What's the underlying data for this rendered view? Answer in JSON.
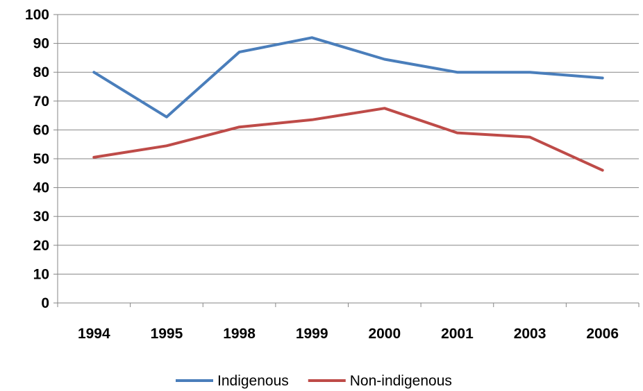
{
  "chart_data": {
    "type": "line",
    "title": "",
    "xlabel": "",
    "ylabel": "",
    "categories": [
      "1994",
      "1995",
      "1998",
      "1999",
      "2000",
      "2001",
      "2003",
      "2006"
    ],
    "ylim": [
      0,
      100
    ],
    "yticks": [
      "0",
      "10",
      "20",
      "30",
      "40",
      "50",
      "60",
      "70",
      "80",
      "90",
      "100"
    ],
    "grid": true,
    "legend_position": "bottom",
    "series": [
      {
        "name": "Indigenous",
        "color": "#4a7ebb",
        "values": [
          80,
          64.5,
          87,
          92,
          84.5,
          80,
          80,
          78
        ]
      },
      {
        "name": "Non-indigenous",
        "color": "#be4b48",
        "values": [
          50.5,
          54.5,
          61,
          63.5,
          67.5,
          59,
          57.5,
          46
        ]
      }
    ]
  }
}
